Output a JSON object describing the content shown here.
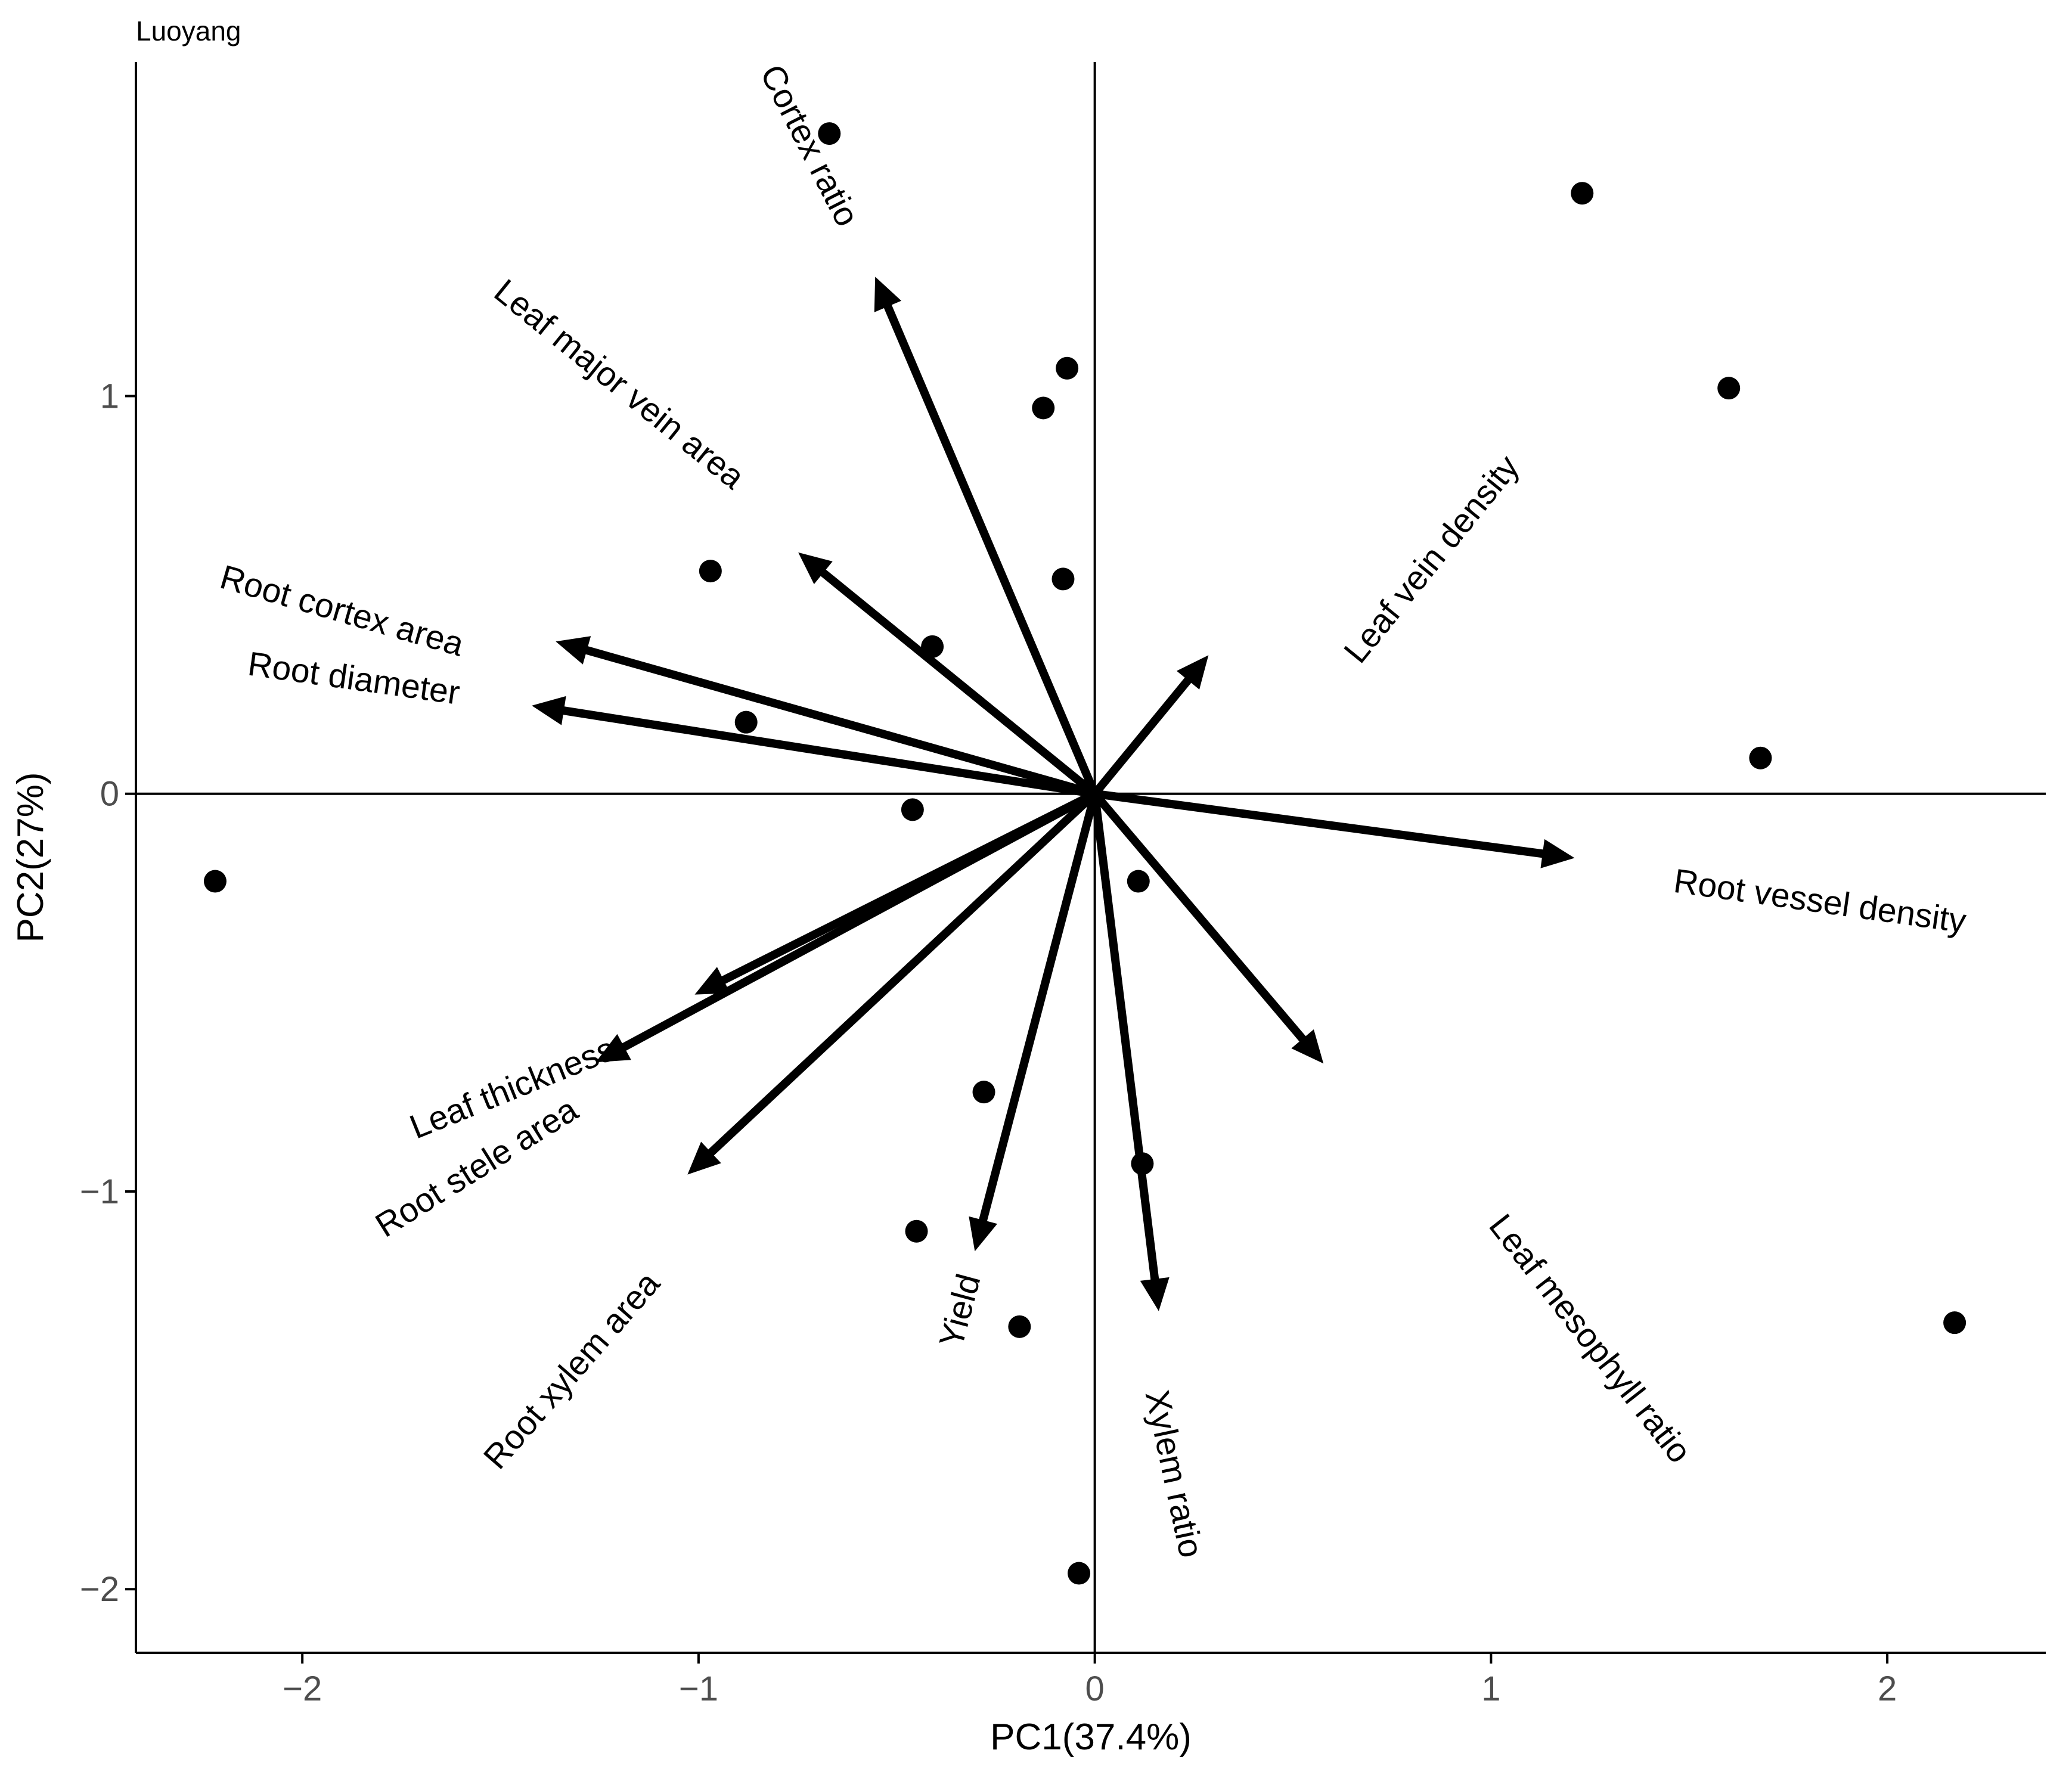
{
  "chart_data": {
    "type": "scatter",
    "subtype": "pca-biplot",
    "corner_label": "Luoyang",
    "xlabel": "PC1(37.4%)",
    "ylabel": "PC2(27%)",
    "xlim": [
      -2.42,
      2.4
    ],
    "ylim": [
      -2.16,
      1.84
    ],
    "xticks": [
      -2,
      -1,
      0,
      1,
      2
    ],
    "xtick_labels": [
      "−2",
      "−1",
      "0",
      "1",
      "2"
    ],
    "yticks": [
      -2,
      -1,
      0,
      1
    ],
    "ytick_labels": [
      "−2",
      "−1",
      "0",
      "1"
    ],
    "reference_lines": {
      "x": 0,
      "y": 0
    },
    "grid": false,
    "legend": "none",
    "points": [
      {
        "x": -0.67,
        "y": 1.66
      },
      {
        "x": 1.23,
        "y": 1.51
      },
      {
        "x": -0.07,
        "y": 1.07
      },
      {
        "x": -0.13,
        "y": 0.97
      },
      {
        "x": 1.6,
        "y": 1.02
      },
      {
        "x": -0.97,
        "y": 0.56
      },
      {
        "x": -0.08,
        "y": 0.54
      },
      {
        "x": -0.41,
        "y": 0.37
      },
      {
        "x": -0.88,
        "y": 0.18
      },
      {
        "x": 1.68,
        "y": 0.09
      },
      {
        "x": -0.46,
        "y": -0.04
      },
      {
        "x": -2.22,
        "y": -0.22
      },
      {
        "x": 0.11,
        "y": -0.22
      },
      {
        "x": -0.28,
        "y": -0.75
      },
      {
        "x": 0.12,
        "y": -0.93
      },
      {
        "x": -0.45,
        "y": -1.1
      },
      {
        "x": -0.19,
        "y": -1.34
      },
      {
        "x": 2.17,
        "y": -1.33
      },
      {
        "x": -0.04,
        "y": -1.96
      }
    ],
    "vectors": [
      {
        "label": "Cortex ratio",
        "x": -0.55,
        "y": 1.29,
        "label_x": -0.72,
        "label_y": 1.63,
        "angle": 63
      },
      {
        "label": "Leaf major vein area",
        "x": -0.74,
        "y": 0.6,
        "label_x": -1.2,
        "label_y": 1.03,
        "angle": 39
      },
      {
        "label": "Root cortex area",
        "x": -1.35,
        "y": 0.38,
        "label_x": -1.9,
        "label_y": 0.46,
        "angle": 16
      },
      {
        "label": "Root diameter",
        "x": -1.41,
        "y": 0.22,
        "label_x": -1.87,
        "label_y": 0.29,
        "angle": 8
      },
      {
        "label": "Leaf vein density",
        "x": 0.28,
        "y": 0.34,
        "label_x": 0.85,
        "label_y": 0.59,
        "angle": -51
      },
      {
        "label": "Root vessel density",
        "x": 1.2,
        "y": -0.16,
        "label_x": 1.83,
        "label_y": -0.27,
        "angle": 8
      },
      {
        "label": "Leaf mesophyll ratio",
        "x": 0.57,
        "y": -0.67,
        "label_x": 1.25,
        "label_y": -1.37,
        "angle": 52
      },
      {
        "label": "Leaf thickness",
        "x": -1.0,
        "y": -0.5,
        "label_x": -1.47,
        "label_y": -0.74,
        "angle": -22
      },
      {
        "label": "Root stele area",
        "x": -1.25,
        "y": -0.67,
        "label_x": -1.56,
        "label_y": -0.94,
        "angle": -32
      },
      {
        "label": "Root xylem area",
        "x": -1.02,
        "y": -0.95,
        "label_x": -1.32,
        "label_y": -1.45,
        "angle": -49
      },
      {
        "label": "Yield",
        "x": -0.3,
        "y": -1.14,
        "label_x": -0.34,
        "label_y": -1.3,
        "angle": -75
      },
      {
        "label": "Xylem ratio",
        "x": 0.16,
        "y": -1.29,
        "label_x": 0.2,
        "label_y": -1.71,
        "angle": 78
      }
    ]
  }
}
